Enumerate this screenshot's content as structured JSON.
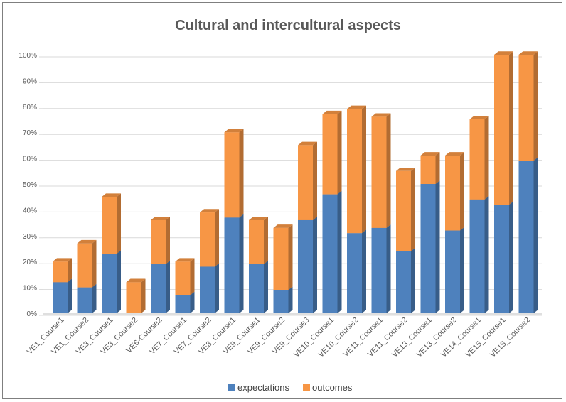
{
  "chart_data": {
    "type": "bar",
    "stacked": true,
    "three_d": true,
    "title": "Cultural and intercultural aspects",
    "categories": [
      "VE1_Course1",
      "VE1_Course2",
      "VE3_Course1",
      "VE3_Course2",
      "VE6-Course2",
      "VE7_Course1",
      "VE7_Course2",
      "VE8_Course1",
      "VE9_Course1",
      "VE9_Course2",
      "VE9_Course3",
      "VE10_Course1",
      "VE10_Course2",
      "VE11_Course1",
      "VE11_Course2",
      "VE13_Course1",
      "VE13_Course2",
      "VE14_Course1",
      "VE15_Course1",
      "VE15_Course2"
    ],
    "series": [
      {
        "name": "expectations",
        "color": "#4e81bd",
        "values": [
          12,
          10,
          23,
          0,
          19,
          7,
          18,
          37,
          19,
          9,
          36,
          46,
          31,
          33,
          24,
          50,
          32,
          44,
          42,
          59
        ]
      },
      {
        "name": "outcomes",
        "color": "#f79645",
        "values": [
          8,
          17,
          22,
          12,
          17,
          13,
          21,
          33,
          17,
          24,
          29,
          31,
          48,
          43,
          31,
          11,
          29,
          31,
          58,
          41
        ]
      }
    ],
    "ylim": [
      0,
      100
    ],
    "yticks": [
      "0%",
      "10%",
      "20%",
      "30%",
      "40%",
      "50%",
      "60%",
      "70%",
      "80%",
      "90%",
      "100%"
    ],
    "grid": true,
    "legend": "bottom"
  }
}
